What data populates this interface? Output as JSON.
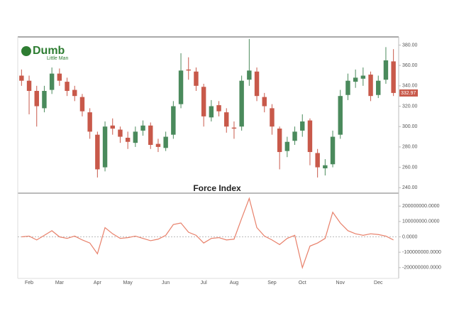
{
  "logo": {
    "title": "Dumb",
    "subtitle": "Little Man"
  },
  "chart_data": [
    {
      "type": "candlestick",
      "up_color": "#4a8a5c",
      "down_color": "#c8594a",
      "open": [
        350,
        345,
        335,
        318,
        336,
        352,
        344,
        336,
        329,
        314,
        292,
        260,
        301,
        297,
        289,
        284,
        296,
        301,
        283,
        279,
        292,
        322,
        356,
        354,
        339,
        309,
        321,
        314,
        299,
        300,
        346,
        354,
        329,
        318,
        298,
        276,
        286,
        296,
        306,
        274,
        259,
        263,
        292,
        331,
        344,
        347,
        351,
        331,
        346,
        364
      ],
      "high": [
        356,
        350,
        340,
        340,
        358,
        357,
        348,
        340,
        332,
        318,
        295,
        305,
        308,
        300,
        295,
        300,
        306,
        304,
        288,
        295,
        325,
        372,
        368,
        358,
        342,
        326,
        325,
        318,
        305,
        350,
        386,
        358,
        333,
        322,
        300,
        290,
        300,
        312,
        308,
        278,
        268,
        296,
        336,
        352,
        356,
        358,
        354,
        350,
        378,
        376
      ],
      "low": [
        340,
        312,
        300,
        314,
        332,
        340,
        330,
        325,
        310,
        288,
        250,
        256,
        292,
        284,
        278,
        280,
        291,
        278,
        275,
        276,
        288,
        318,
        346,
        335,
        300,
        305,
        310,
        294,
        288,
        296,
        340,
        325,
        314,
        292,
        258,
        270,
        282,
        290,
        262,
        250,
        252,
        260,
        288,
        326,
        338,
        340,
        325,
        328,
        342,
        330
      ],
      "close": [
        345,
        335,
        320,
        335,
        352,
        345,
        335,
        330,
        315,
        295,
        258,
        300,
        298,
        290,
        285,
        295,
        301,
        282,
        280,
        290,
        320,
        355,
        355,
        340,
        310,
        320,
        315,
        300,
        298,
        345,
        355,
        330,
        320,
        300,
        275,
        285,
        295,
        305,
        275,
        260,
        262,
        290,
        330,
        345,
        348,
        350,
        330,
        345,
        365,
        333
      ],
      "last_price": {
        "value": 332.97,
        "label": "332.97"
      },
      "ylim": [
        236,
        388
      ],
      "yticks": [
        {
          "value": 240,
          "label": "240.00"
        },
        {
          "value": 260,
          "label": "260.00"
        },
        {
          "value": 280,
          "label": "280.00"
        },
        {
          "value": 300,
          "label": "300.00"
        },
        {
          "value": 320,
          "label": "320.00"
        },
        {
          "value": 340,
          "label": "340.00"
        },
        {
          "value": 360,
          "label": "360.00"
        },
        {
          "value": 380,
          "label": "380.00"
        }
      ]
    },
    {
      "type": "line",
      "title": "Force Index",
      "color": "#e8806a",
      "categories": [
        null,
        "Feb",
        null,
        null,
        null,
        "Mar",
        null,
        null,
        null,
        null,
        "Apr",
        null,
        null,
        null,
        "May",
        null,
        null,
        null,
        null,
        "Jun",
        null,
        null,
        null,
        null,
        "Jul",
        null,
        null,
        null,
        "Aug",
        null,
        null,
        null,
        null,
        "Sep",
        null,
        null,
        null,
        "Oct",
        null,
        null,
        null,
        null,
        "Nov",
        null,
        null,
        null,
        null,
        "Dec",
        null,
        null
      ],
      "values": [
        0,
        5000000,
        -20000000,
        10000000,
        40000000,
        0,
        -10000000,
        5000000,
        -20000000,
        -40000000,
        -110000000,
        60000000,
        20000000,
        -10000000,
        -5000000,
        5000000,
        -10000000,
        -25000000,
        -15000000,
        10000000,
        80000000,
        90000000,
        30000000,
        10000000,
        -40000000,
        -10000000,
        -5000000,
        -20000000,
        -15000000,
        120000000,
        250000000,
        60000000,
        5000000,
        -20000000,
        -50000000,
        -10000000,
        10000000,
        -200000000,
        -60000000,
        -40000000,
        -10000000,
        160000000,
        90000000,
        40000000,
        20000000,
        10000000,
        20000000,
        15000000,
        5000000,
        -20000000
      ],
      "ylim": [
        -270000000,
        284000000
      ],
      "yticks": [
        {
          "value": -200000000,
          "label": "-200000000.0000"
        },
        {
          "value": -100000000,
          "label": "-100000000.0000"
        },
        {
          "value": 0,
          "label": "0.0000"
        },
        {
          "value": 100000000,
          "label": "100000000.0000"
        },
        {
          "value": 200000000,
          "label": "200000000.0000"
        }
      ]
    }
  ]
}
